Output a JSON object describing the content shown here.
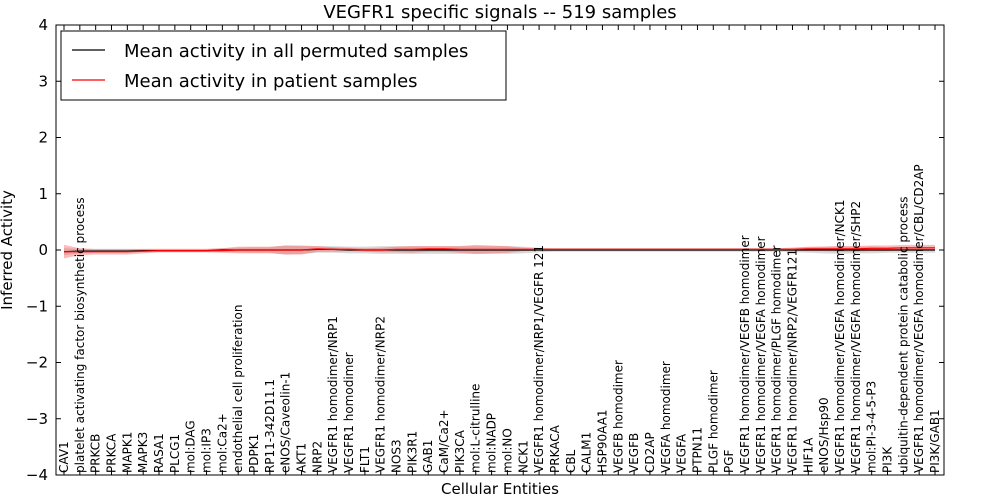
{
  "chart_data": {
    "type": "line",
    "title": "VEGFR1 specific signals -- 519 samples",
    "xlabel": "Cellular Entities",
    "ylabel": "Inferred Activity",
    "ylim": [
      -4,
      4
    ],
    "yticks": [
      "−4",
      "−3",
      "−2",
      "−1",
      "0",
      "1",
      "2",
      "3",
      "4"
    ],
    "legend_position": "top-left",
    "categories": [
      "CAV1",
      "platelet activating factor biosynthetic process",
      "PRKCB",
      "PRKCA",
      "MAPK1",
      "MAPK3",
      "RASA1",
      "PLCG1",
      "mol:DAG",
      "mol:IP3",
      "mol:Ca2+",
      "endothelial cell proliferation",
      "PDPK1",
      "RP11-342D11.1",
      "eNOS/Caveolin-1",
      "AKT1",
      "NRP2",
      "VEGFR1 homodimer/NRP1",
      "VEGFR1 homodimer",
      "FLT1",
      "VEGFR1 homodimer/NRP2",
      "NOS3",
      "PIK3R1",
      "GAB1",
      "CaM/Ca2+",
      "PIK3CA",
      "mol:L-citrulline",
      "mol:NADP",
      "mol:NO",
      "NCK1",
      "VEGFR1 homodimer/NRP1/VEGFR 121",
      "PRKACA",
      "CBL",
      "CALM1",
      "HSP90AA1",
      "VEGFB homodimer",
      "VEGFB",
      "CD2AP",
      "VEGFA homodimer",
      "VEGFA",
      "PTPN11",
      "PLGF homodimer",
      "PGF",
      "VEGFR1 homodimer/VEGFB homodimer",
      "VEGFR1 homodimer/VEGFA homodimer",
      "VEGFR1 homodimer/PLGF homodimer",
      "VEGFR1 homodimer/NRP2/VEGFR121",
      "HIF1A",
      "eNOS/Hsp90",
      "VEGFR1 homodimer/VEGFA homodimer/NCK1",
      "VEGFR1 homodimer/VEGFA homodimer/SHP2",
      "mol:PI-3-4-5-P3",
      "PI3K",
      "ubiquitin-dependent protein catabolic process",
      "VEGFR1 homodimer/VEGFA homodimer/CBL/CD2AP",
      "PI3K/GAB1"
    ],
    "series": [
      {
        "name": "Mean activity in all permuted samples",
        "color": "#000000",
        "values": [
          -0.03,
          -0.02,
          -0.02,
          -0.02,
          -0.02,
          -0.01,
          -0.01,
          -0.01,
          -0.01,
          -0.01,
          0,
          0,
          0,
          0,
          0,
          0,
          0.01,
          0.01,
          0,
          0,
          0,
          0,
          0,
          0,
          0,
          0,
          0,
          0,
          0,
          0,
          0,
          0,
          0,
          0,
          0,
          0,
          0,
          0,
          0,
          0,
          0,
          0,
          0,
          0,
          0,
          0,
          0,
          0,
          0,
          0,
          0,
          0,
          0,
          0,
          0,
          0
        ],
        "band": [
          0.06,
          0.04,
          0.03,
          0.03,
          0.03,
          0.03,
          0.03,
          0.03,
          0.03,
          0.03,
          0.03,
          0.04,
          0.05,
          0.05,
          0.08,
          0.07,
          0.06,
          0.06,
          0.06,
          0.06,
          0.07,
          0.07,
          0.07,
          0.07,
          0.07,
          0.07,
          0.07,
          0.07,
          0.07,
          0.06,
          0.04,
          0.03,
          0.03,
          0.03,
          0.03,
          0.03,
          0.03,
          0.03,
          0.03,
          0.03,
          0.03,
          0.03,
          0.03,
          0.03,
          0.03,
          0.03,
          0.04,
          0.05,
          0.06,
          0.07,
          0.06,
          0.06,
          0.05,
          0.05,
          0.05,
          0.05
        ]
      },
      {
        "name": "Mean activity in patient samples",
        "color": "#ff0000",
        "values": [
          -0.03,
          -0.03,
          -0.03,
          -0.03,
          -0.03,
          -0.02,
          -0.01,
          -0.01,
          -0.01,
          -0.01,
          -0.01,
          0,
          0,
          0,
          0,
          0,
          0.02,
          0.01,
          0.01,
          0,
          0,
          0.01,
          0.01,
          0.02,
          0.02,
          0.01,
          0.01,
          0.01,
          0.01,
          0.01,
          0.01,
          0.01,
          0.01,
          0.01,
          0.01,
          0.01,
          0.01,
          0.01,
          0.01,
          0.01,
          0.01,
          0.01,
          0.01,
          0.01,
          0.01,
          0.01,
          0.01,
          0.02,
          0.02,
          0.02,
          0.02,
          0.03,
          0.03,
          0.04,
          0.04,
          0.04
        ],
        "band": [
          0.12,
          0.06,
          0.05,
          0.05,
          0.05,
          0.04,
          0.03,
          0.03,
          0.03,
          0.03,
          0.04,
          0.06,
          0.06,
          0.06,
          0.08,
          0.08,
          0.05,
          0.04,
          0.03,
          0.03,
          0.04,
          0.05,
          0.06,
          0.05,
          0.05,
          0.06,
          0.08,
          0.07,
          0.06,
          0.03,
          0.02,
          0.02,
          0.02,
          0.02,
          0.02,
          0.02,
          0.02,
          0.02,
          0.02,
          0.02,
          0.02,
          0.02,
          0.02,
          0.02,
          0.02,
          0.02,
          0.03,
          0.04,
          0.04,
          0.05,
          0.05,
          0.05,
          0.05,
          0.05,
          0.05,
          0.05
        ]
      }
    ]
  }
}
